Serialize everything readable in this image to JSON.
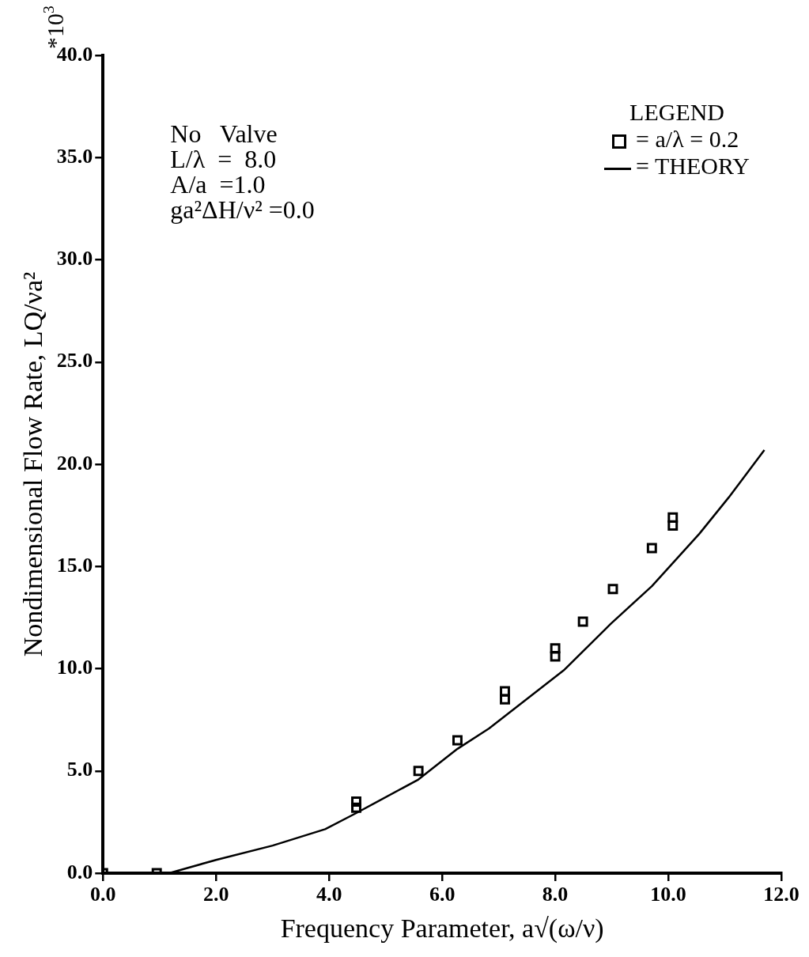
{
  "chart_data": {
    "type": "scatter",
    "xlabel": "Frequency Parameter, a√(ω/ν)",
    "ylabel": "Nondimensional Flow Rate, LQ/νa²",
    "legend_title": "LEGEND",
    "legend": "top right",
    "grid": false,
    "marker": "square",
    "xlim": [
      0,
      12
    ],
    "xticks": [
      {
        "value": 0,
        "label": "0.0"
      },
      {
        "value": 2,
        "label": "2.0"
      },
      {
        "value": 4,
        "label": "4.0"
      },
      {
        "value": 6,
        "label": "6.0"
      },
      {
        "value": 8,
        "label": "8.0"
      },
      {
        "value": 10,
        "label": "10.0"
      },
      {
        "value": 12,
        "label": "12.0"
      }
    ],
    "ylim": [
      0,
      40
    ],
    "yticks": [
      {
        "value": 0,
        "label": "0.0"
      },
      {
        "value": 5,
        "label": "5.0"
      },
      {
        "value": 10,
        "label": "10.0"
      },
      {
        "value": 15,
        "label": "15.0"
      },
      {
        "value": 20,
        "label": "20.0"
      },
      {
        "value": 25,
        "label": "25.0"
      },
      {
        "value": 30,
        "label": "30.0"
      },
      {
        "value": 35,
        "label": "35.0"
      },
      {
        "value": 40,
        "label": "40.0"
      }
    ],
    "annotations": [
      "*10$^{3}$",
      "No   Valve",
      "L/λ  =  8.0",
      "A/a  =1.0",
      "ga²ΔH/ν² =0.0"
    ],
    "series": [
      {
        "name": "= a/λ = 0.2",
        "color": "#000000",
        "x": [
          0,
          0.95,
          4.48,
          4.48,
          5.58,
          6.27,
          7.11,
          7.11,
          8.0,
          8.0,
          8.49,
          9.02,
          9.71,
          10.08,
          10.08
        ],
        "values": [
          0,
          0,
          3.2,
          3.5,
          5.0,
          6.5,
          8.5,
          8.9,
          10.6,
          11.0,
          12.3,
          13.9,
          15.9,
          17.0,
          17.4
        ]
      },
      {
        "name": "= THEORY",
        "type": "line",
        "marker": "none",
        "line_style": "solid",
        "color": "#000000",
        "x": [
          1.17,
          2.0,
          3.0,
          3.93,
          4.48,
          5.58,
          6.27,
          6.83,
          8.15,
          8.98,
          9.71,
          10.55,
          11.07,
          11.7
        ],
        "values": [
          0,
          0.65,
          1.35,
          2.15,
          2.94,
          4.58,
          6.08,
          7.08,
          9.92,
          12.19,
          14.04,
          16.6,
          18.38,
          20.7
        ]
      }
    ]
  }
}
